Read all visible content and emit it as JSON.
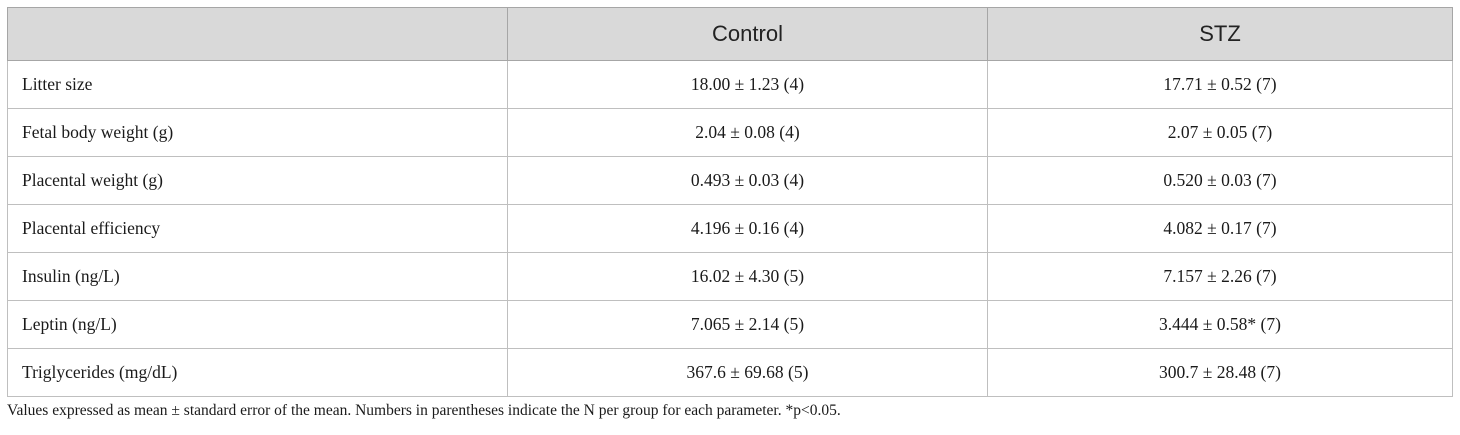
{
  "table": {
    "headers": [
      "",
      "Control",
      "STZ"
    ],
    "rows": [
      {
        "parameter": "Litter size",
        "control": "18.00 ± 1.23 (4)",
        "stz": "17.71 ± 0.52 (7)"
      },
      {
        "parameter": "Fetal body weight (g)",
        "control": "2.04 ± 0.08 (4)",
        "stz": "2.07 ± 0.05 (7)"
      },
      {
        "parameter": "Placental weight (g)",
        "control": "0.493 ± 0.03 (4)",
        "stz": "0.520 ± 0.03 (7)"
      },
      {
        "parameter": "Placental efficiency",
        "control": "4.196 ± 0.16 (4)",
        "stz": "4.082 ± 0.17 (7)"
      },
      {
        "parameter": "Insulin (ng/L)",
        "control": "16.02 ± 4.30 (5)",
        "stz": "7.157 ± 2.26 (7)"
      },
      {
        "parameter": "Leptin (ng/L)",
        "control": "7.065 ± 2.14 (5)",
        "stz": "3.444 ± 0.58* (7)"
      },
      {
        "parameter": "Triglycerides (mg/dL)",
        "control": "367.6 ± 69.68 (5)",
        "stz": "300.7 ± 28.48 (7)"
      }
    ]
  },
  "footnote": "Values expressed as mean ± standard error of the mean. Numbers in parentheses indicate the N per group for each parameter. *p<0.05."
}
